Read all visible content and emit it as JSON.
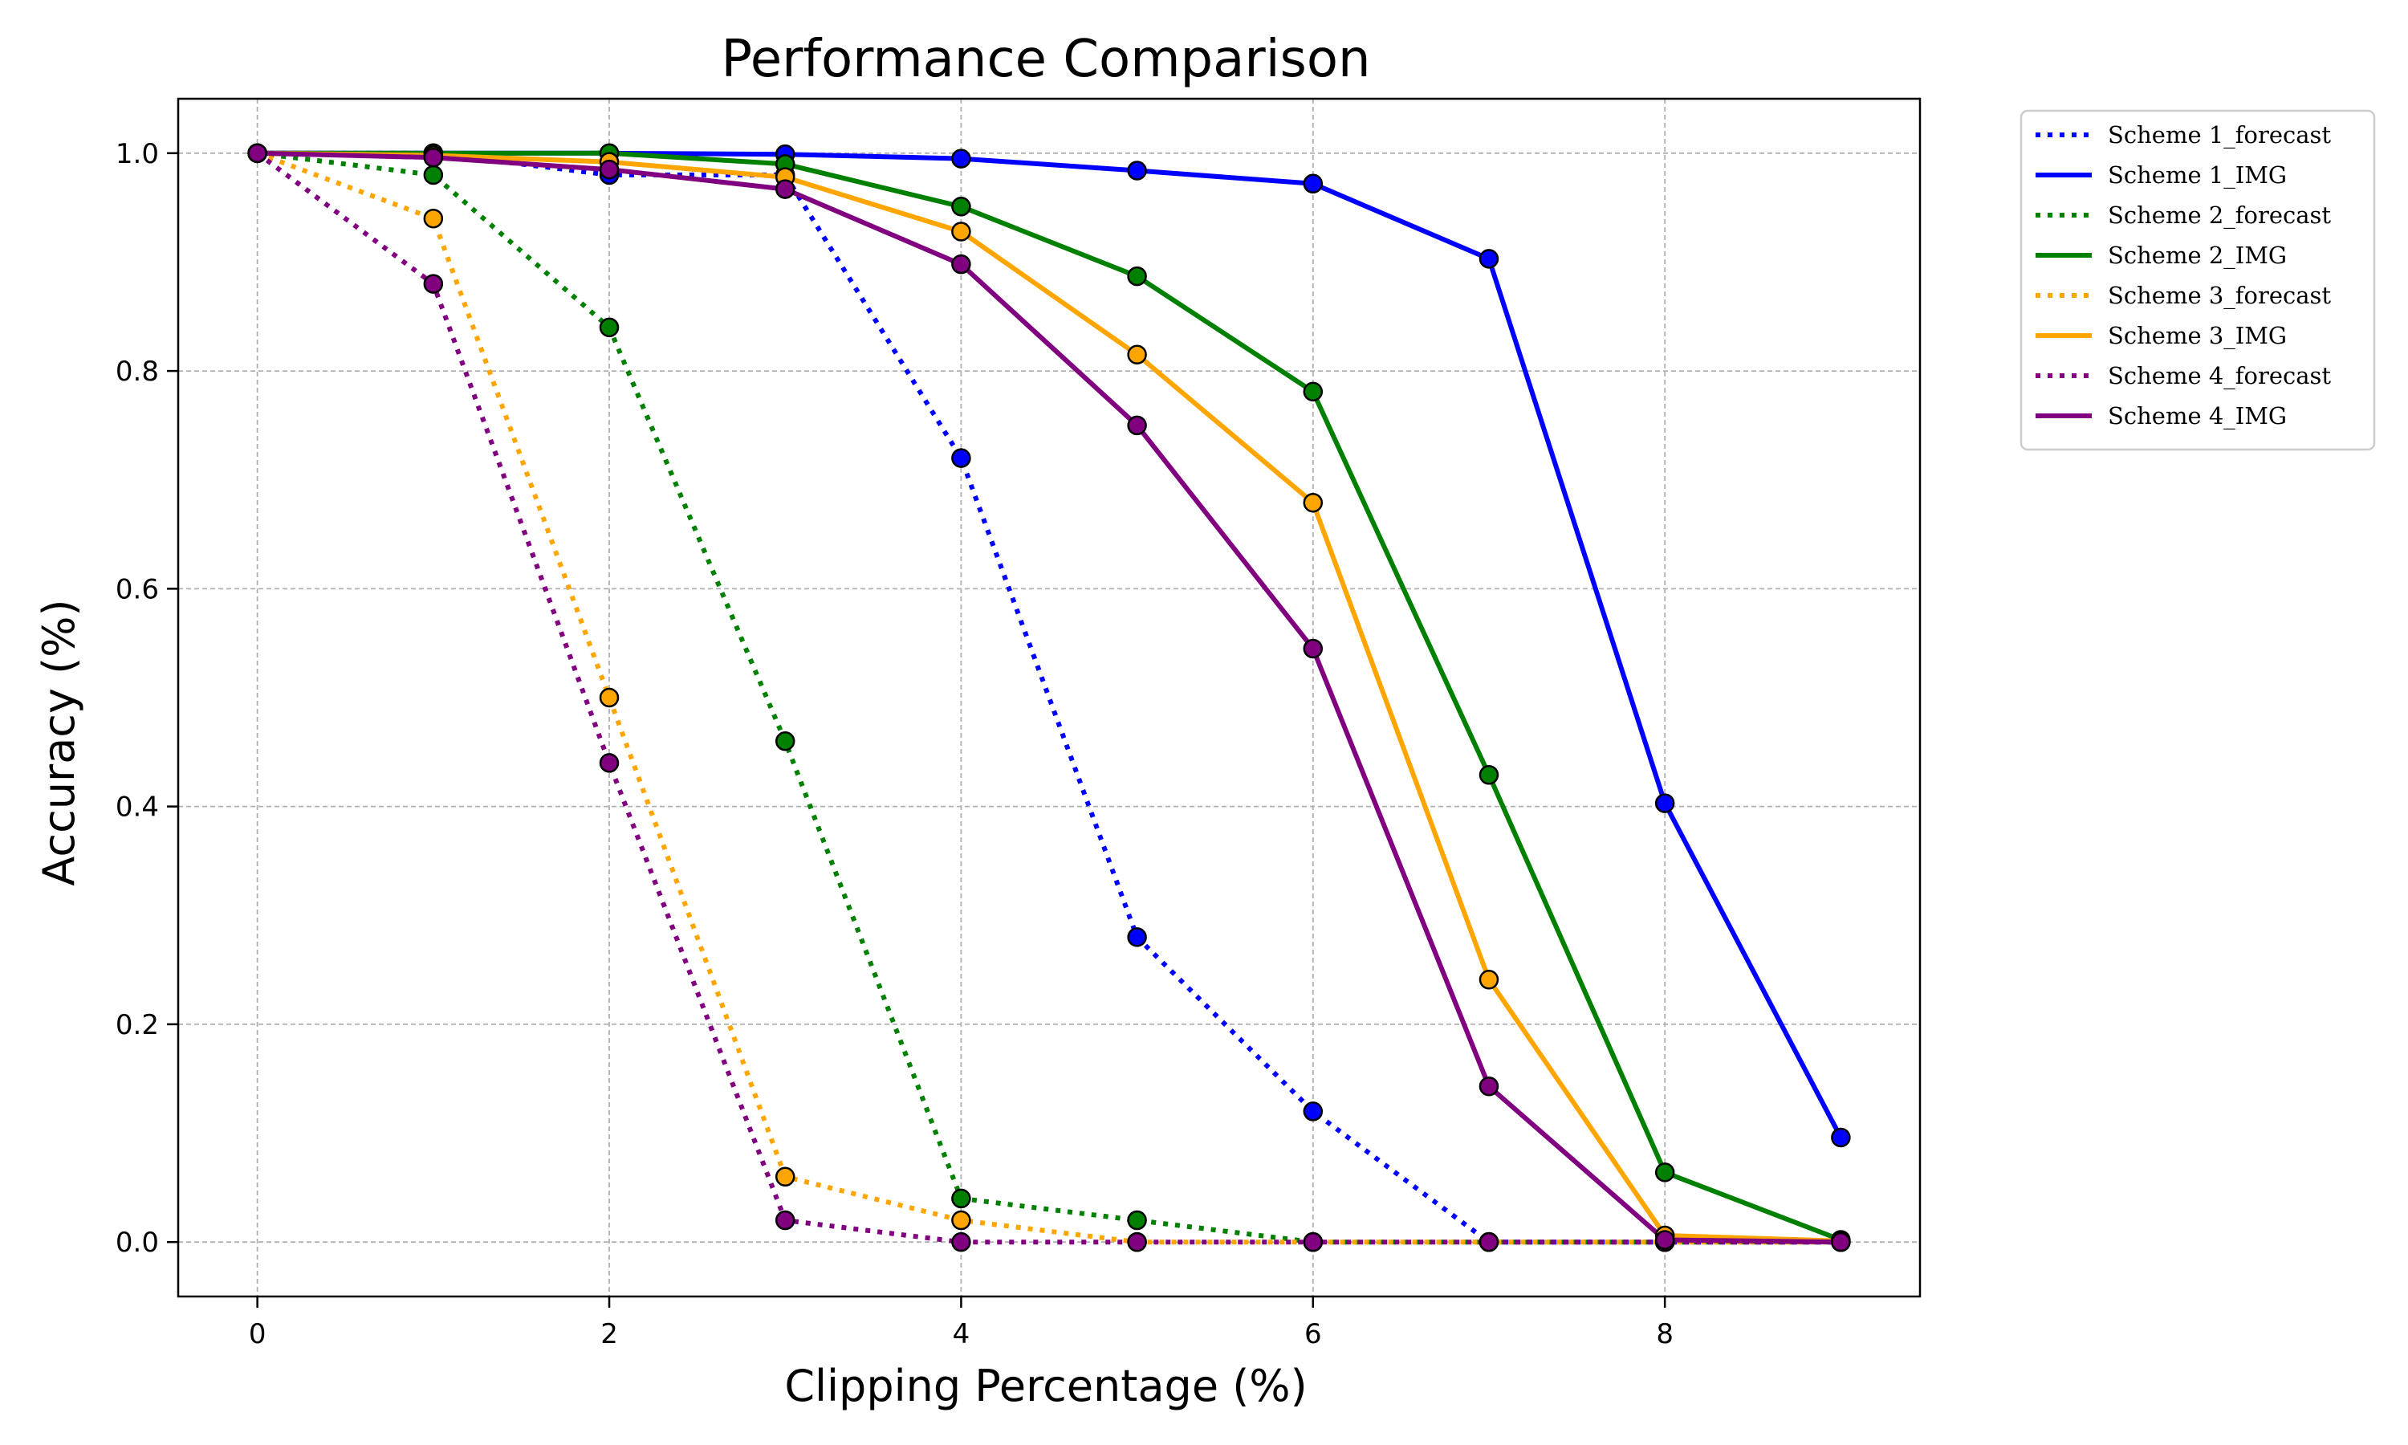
{
  "chart_data": {
    "type": "line",
    "title": "Performance Comparison",
    "xlabel": "Clipping Percentage (%)",
    "ylabel": "Accuracy (%)",
    "xlim": [
      -0.45,
      9.45
    ],
    "ylim": [
      -0.05,
      1.05
    ],
    "xticks": [
      0,
      2,
      4,
      6,
      8
    ],
    "yticks": [
      0.0,
      0.2,
      0.4,
      0.6,
      0.8,
      1.0
    ],
    "grid": true,
    "legend_placement": "outside-top-right",
    "x": [
      0,
      1,
      2,
      3,
      4,
      5,
      6,
      7,
      8,
      9
    ],
    "series": [
      {
        "name": "Scheme 1_forecast",
        "color": "#0000ff",
        "style": "dotted",
        "values": [
          1.0,
          1.0,
          0.98,
          0.98,
          0.72,
          0.28,
          0.12,
          0.0,
          0.0,
          0.0
        ]
      },
      {
        "name": "Scheme 1_IMG",
        "color": "#0000ff",
        "style": "solid",
        "values": [
          1.0,
          1.0,
          1.0,
          0.999,
          0.995,
          0.984,
          0.972,
          0.903,
          0.403,
          0.096
        ]
      },
      {
        "name": "Scheme 2_forecast",
        "color": "#008000",
        "style": "dotted",
        "values": [
          1.0,
          0.98,
          0.84,
          0.46,
          0.04,
          0.02,
          0.0,
          0.0,
          0.0,
          0.0
        ]
      },
      {
        "name": "Scheme 2_IMG",
        "color": "#008000",
        "style": "solid",
        "values": [
          1.0,
          1.0,
          1.0,
          0.99,
          0.951,
          0.887,
          0.781,
          0.429,
          0.064,
          0.002
        ]
      },
      {
        "name": "Scheme 3_forecast",
        "color": "#ffa500",
        "style": "dotted",
        "values": [
          1.0,
          0.94,
          0.5,
          0.06,
          0.02,
          0.0,
          0.0,
          0.0,
          0.0,
          0.0
        ]
      },
      {
        "name": "Scheme 3_IMG",
        "color": "#ffa500",
        "style": "solid",
        "values": [
          1.0,
          0.998,
          0.992,
          0.978,
          0.928,
          0.815,
          0.679,
          0.241,
          0.006,
          0.001
        ]
      },
      {
        "name": "Scheme 4_forecast",
        "color": "#800080",
        "style": "dotted",
        "values": [
          1.0,
          0.88,
          0.44,
          0.02,
          0.0,
          0.0,
          0.0,
          0.0,
          0.0,
          0.0
        ]
      },
      {
        "name": "Scheme 4_IMG",
        "color": "#800080",
        "style": "solid",
        "values": [
          1.0,
          0.996,
          0.985,
          0.967,
          0.898,
          0.75,
          0.545,
          0.143,
          0.002,
          0.0
        ]
      }
    ]
  }
}
